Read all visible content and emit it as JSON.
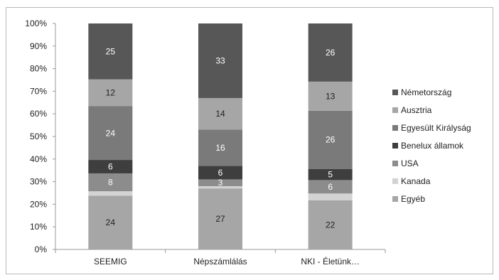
{
  "chart_data": {
    "type": "bar",
    "stacked": true,
    "percent_stacked": true,
    "categories": [
      "SEEMIG",
      "Népszámlálás",
      "NKI - Életünk…"
    ],
    "ylim": [
      0,
      100
    ],
    "yticks": [
      "0%",
      "10%",
      "20%",
      "30%",
      "40%",
      "50%",
      "60%",
      "70%",
      "80%",
      "90%",
      "100%"
    ],
    "legend_position": "right",
    "series": [
      {
        "name": "Egyéb",
        "values": [
          24,
          27,
          22
        ],
        "labels": [
          "24",
          "27",
          "22"
        ],
        "color": "#a6a6a6",
        "label_color": "#222222"
      },
      {
        "name": "Kanada",
        "values": [
          2,
          1,
          3
        ],
        "labels": [
          "",
          "",
          ""
        ],
        "color": "#d3d3d3",
        "label_color": "#222222"
      },
      {
        "name": "USA",
        "values": [
          8,
          3,
          6
        ],
        "labels": [
          "8",
          "3",
          "6"
        ],
        "color": "#8c8c8c",
        "label_color": "#ffffff"
      },
      {
        "name": "Benelux államok",
        "values": [
          6,
          6,
          5
        ],
        "labels": [
          "6",
          "6",
          "5"
        ],
        "color": "#3e3e3e",
        "label_color": "#ffffff"
      },
      {
        "name": "Egyesült Királyság",
        "values": [
          24,
          16,
          26
        ],
        "labels": [
          "24",
          "16",
          "26"
        ],
        "color": "#7a7a7a",
        "label_color": "#ffffff"
      },
      {
        "name": "Ausztria",
        "values": [
          12,
          14,
          13
        ],
        "labels": [
          "12",
          "14",
          "13"
        ],
        "color": "#a6a6a6",
        "label_color": "#222222"
      },
      {
        "name": "Németország",
        "values": [
          25,
          33,
          26
        ],
        "labels": [
          "25",
          "33",
          "26"
        ],
        "color": "#575757",
        "label_color": "#ffffff"
      }
    ],
    "legend_order": [
      "Németország",
      "Ausztria",
      "Egyesült Királyság",
      "Benelux államok",
      "USA",
      "Kanada",
      "Egyéb"
    ]
  }
}
